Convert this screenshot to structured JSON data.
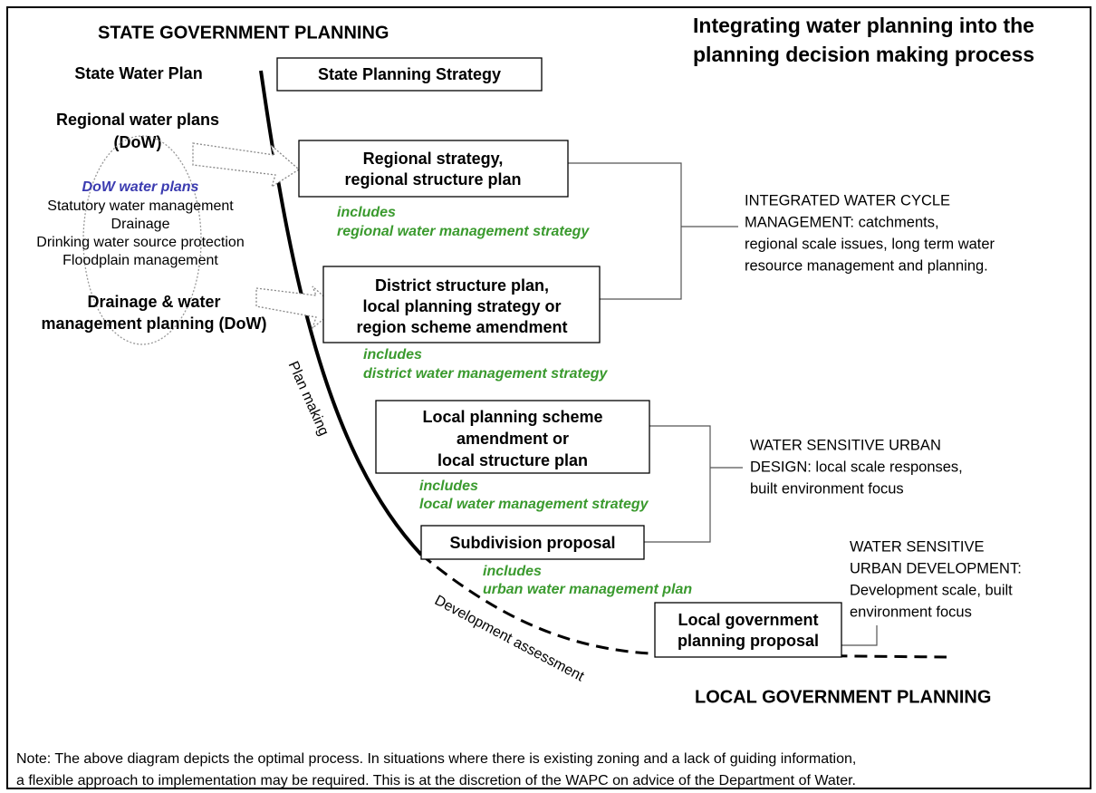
{
  "header": {
    "state": "STATE  GOVERNMENT PLANNING",
    "title": [
      "Integrating water planning into the",
      "planning decision making process"
    ],
    "local": "LOCAL GOVERNMENT PLANNING"
  },
  "left": {
    "state_water_plan": "State Water Plan",
    "regional_water_plans": [
      "Regional water plans",
      "(DoW)"
    ],
    "dow_water_plans": {
      "title": "DoW water plans",
      "items": [
        "Statutory water management",
        "Drainage",
        "Drinking water source protection",
        "Floodplain management"
      ]
    },
    "drainage": [
      "Drainage & water",
      "management planning (DoW)"
    ]
  },
  "curve_labels": {
    "plan_making": "Plan making",
    "development_assessment": "Development assessment"
  },
  "boxes": [
    {
      "lines": [
        "State Planning Strategy"
      ]
    },
    {
      "lines": [
        "Regional strategy,",
        "regional structure plan"
      ],
      "includes": [
        "includes",
        "regional water management strategy"
      ]
    },
    {
      "lines": [
        "District structure plan,",
        "local planning strategy or",
        "region scheme amendment"
      ],
      "includes": [
        "includes",
        "district water management strategy"
      ]
    },
    {
      "lines": [
        "Local planning scheme",
        "amendment or",
        "local structure plan"
      ],
      "includes": [
        "includes",
        "local water management strategy"
      ]
    },
    {
      "lines": [
        "Subdivision proposal"
      ],
      "includes": [
        "includes",
        "urban water management plan"
      ]
    },
    {
      "lines": [
        "Local government",
        "planning proposal"
      ]
    }
  ],
  "annotations": [
    [
      "INTEGRATED WATER CYCLE",
      "MANAGEMENT: catchments,",
      "regional scale issues, long term water",
      "resource management and planning."
    ],
    [
      "WATER SENSITIVE URBAN",
      "DESIGN:  local scale responses,",
      "built environment focus"
    ],
    [
      "WATER SENSITIVE",
      "URBAN DEVELOPMENT:",
      "Development scale, built",
      "environment focus"
    ]
  ],
  "note": [
    "Note:  The above diagram depicts the optimal process.  In situations where there is existing zoning and a lack of guiding information,",
    "a flexible approach to implementation may be required. This is at the discretion of the WAPC on advice of the Department of Water."
  ]
}
